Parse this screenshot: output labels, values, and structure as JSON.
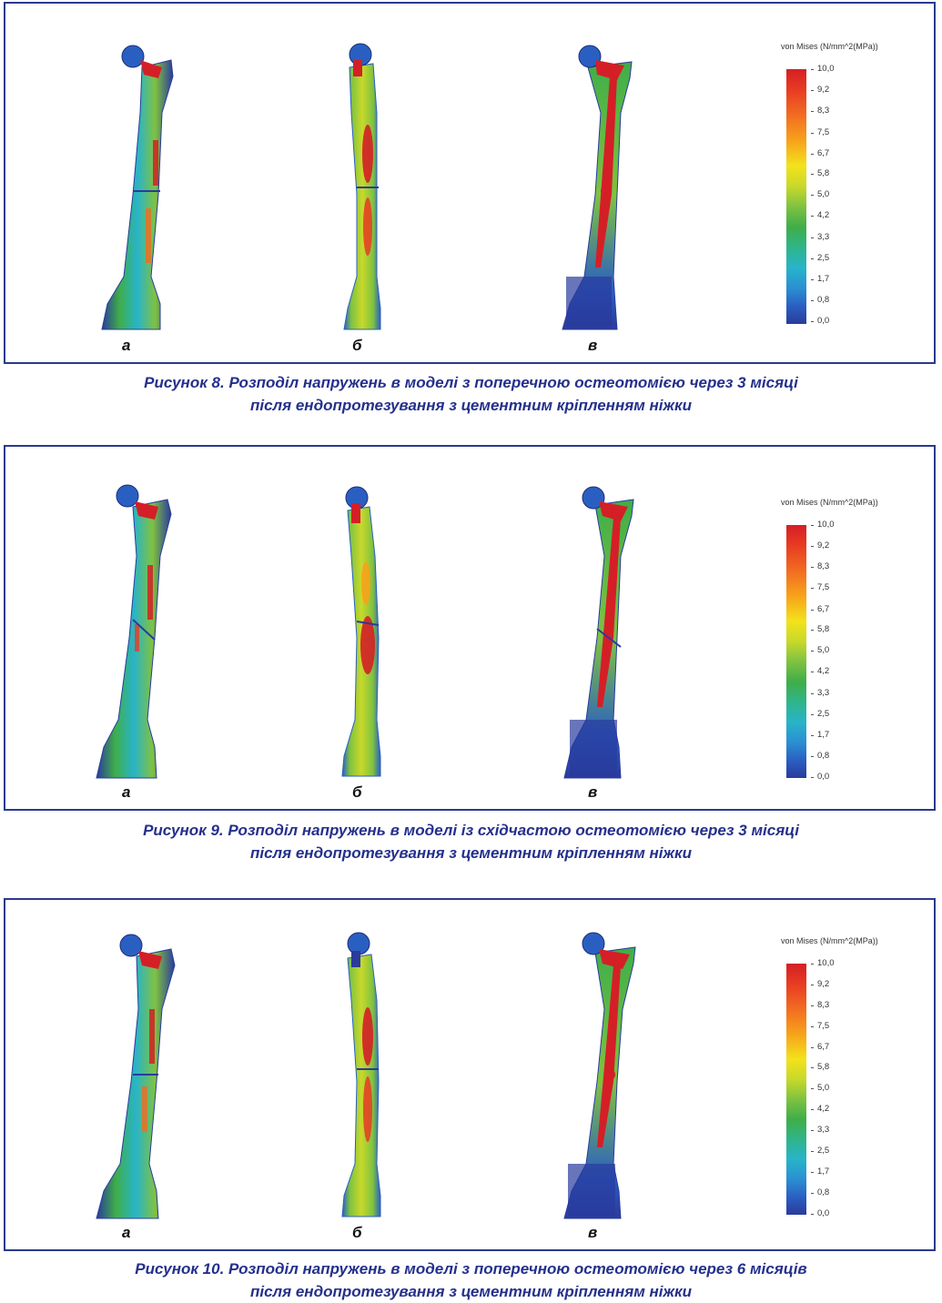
{
  "figures": [
    {
      "id": "fig8",
      "panel_labels": [
        "а",
        "б",
        "в"
      ],
      "scale": {
        "title": "von Mises (N/mm^2(MPa))",
        "ticks": [
          "10,0",
          "9,2",
          "8,3",
          "7,5",
          "6,7",
          "5,8",
          "5,0",
          "4,2",
          "3,3",
          "2,5",
          "1,7",
          "0,8",
          "0,0"
        ]
      },
      "caption": {
        "line1": "Рисунок 8. Розподіл напружень в моделі з поперечною остеотомією через 3 місяці",
        "line2": "після ендопротезування з цементним кріпленням ніжки"
      }
    },
    {
      "id": "fig9",
      "panel_labels": [
        "а",
        "б",
        "в"
      ],
      "scale": {
        "title": "von Mises (N/mm^2(MPa))",
        "ticks": [
          "10,0",
          "9,2",
          "8,3",
          "7,5",
          "6,7",
          "5,8",
          "5,0",
          "4,2",
          "3,3",
          "2,5",
          "1,7",
          "0,8",
          "0,0"
        ]
      },
      "caption": {
        "line1": "Рисунок 9. Розподіл напружень в моделі із східчастою остеотомією через 3 місяці",
        "line2": "після ендопротезування з цементним кріпленням ніжки"
      }
    },
    {
      "id": "fig10",
      "panel_labels": [
        "а",
        "б",
        "в"
      ],
      "scale": {
        "title": "von Mises (N/mm^2(MPa))",
        "ticks": [
          "10,0",
          "9,2",
          "8,3",
          "7,5",
          "6,7",
          "5,8",
          "5,0",
          "4,2",
          "3,3",
          "2,5",
          "1,7",
          "0,8",
          "0,0"
        ]
      },
      "caption": {
        "line1": "Рисунок 10. Розподіл напружень в моделі з поперечною остеотомією через 6 місяців",
        "line2": "після ендопротезування з цементним кріпленням ніжки"
      }
    }
  ],
  "colors": {
    "frame": "#2a3a8c",
    "caption_text": "#24308c",
    "stress_high": "#d41f26",
    "stress_mid": "#7fc241",
    "stress_low": "#2a3b9c"
  }
}
